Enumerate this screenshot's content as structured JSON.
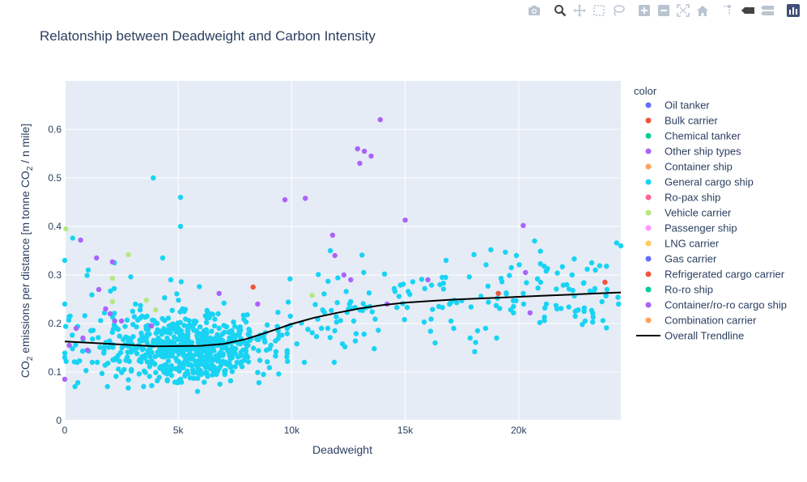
{
  "chart_data": {
    "type": "scatter",
    "title": "Relatonship between Deadweight and Carbon Intensity",
    "xlabel": "Deadweight",
    "ylabel": {
      "pre": "CO",
      "sub1": "2",
      "mid": " emissions per distance [m tonne CO",
      "sub2": "2",
      "post": " / n mile]"
    },
    "xlim": [
      0,
      24500
    ],
    "ylim": [
      0,
      0.7
    ],
    "xticks": [
      0,
      5000,
      10000,
      15000,
      20000
    ],
    "xtick_labels": [
      "0",
      "5k",
      "10k",
      "15k",
      "20k"
    ],
    "yticks": [
      0,
      0.1,
      0.2,
      0.3,
      0.4,
      0.5,
      0.6
    ],
    "ytick_labels": [
      "0",
      "0.1",
      "0.2",
      "0.3",
      "0.4",
      "0.5",
      "0.6"
    ],
    "grid": true,
    "legend_title": "color",
    "legend_position": "right",
    "series": [
      {
        "name": "Oil tanker",
        "color": "#636efa",
        "points": []
      },
      {
        "name": "Bulk carrier",
        "color": "#EF553B",
        "points": [
          [
            8300,
            0.275
          ],
          [
            19100,
            0.262
          ],
          [
            23800,
            0.285
          ]
        ]
      },
      {
        "name": "Chemical tanker",
        "color": "#00cc96",
        "points": []
      },
      {
        "name": "Other ship types",
        "color": "#ab63fa",
        "points": [
          [
            0,
            0.085
          ],
          [
            200,
            0.155
          ],
          [
            500,
            0.19
          ],
          [
            700,
            0.372
          ],
          [
            800,
            0.17
          ],
          [
            1000,
            0.145
          ],
          [
            1400,
            0.335
          ],
          [
            1500,
            0.27
          ],
          [
            1800,
            0.23
          ],
          [
            2000,
            0.22
          ],
          [
            2100,
            0.327
          ],
          [
            2200,
            0.205
          ],
          [
            2500,
            0.205
          ],
          [
            3800,
            0.195
          ],
          [
            6800,
            0.262
          ],
          [
            8500,
            0.24
          ],
          [
            9700,
            0.455
          ],
          [
            10600,
            0.458
          ],
          [
            11800,
            0.382
          ],
          [
            11900,
            0.34
          ],
          [
            12300,
            0.3
          ],
          [
            12600,
            0.29
          ],
          [
            12900,
            0.56
          ],
          [
            13000,
            0.53
          ],
          [
            13200,
            0.555
          ],
          [
            13500,
            0.545
          ],
          [
            13900,
            0.62
          ],
          [
            14200,
            0.24
          ],
          [
            15000,
            0.413
          ],
          [
            16000,
            0.29
          ],
          [
            20200,
            0.402
          ],
          [
            20300,
            0.305
          ],
          [
            20500,
            0.222
          ]
        ]
      },
      {
        "name": "Container ship",
        "color": "#FFA15A",
        "points": []
      },
      {
        "name": "General cargo ship",
        "color": "#19d3f3",
        "points": []
      },
      {
        "name": "Ro-pax ship",
        "color": "#FF6692",
        "points": []
      },
      {
        "name": "Vehicle carrier",
        "color": "#B6E880",
        "points": [
          [
            50,
            0.395
          ],
          [
            2100,
            0.245
          ],
          [
            2100,
            0.293
          ],
          [
            2800,
            0.342
          ],
          [
            3600,
            0.248
          ],
          [
            4000,
            0.228
          ],
          [
            10900,
            0.258
          ]
        ]
      },
      {
        "name": "Passenger ship",
        "color": "#FF97FF",
        "points": []
      },
      {
        "name": "LNG carrier",
        "color": "#FECB52",
        "points": []
      },
      {
        "name": "Gas carrier",
        "color": "#636efa",
        "points": []
      },
      {
        "name": "Refrigerated cargo carrier",
        "color": "#EF553B",
        "points": []
      },
      {
        "name": "Ro-ro ship",
        "color": "#00cc96",
        "points": []
      },
      {
        "name": "Container/ro-ro cargo ship",
        "color": "#ab63fa",
        "points": []
      },
      {
        "name": "Combination carrier",
        "color": "#FFA15A",
        "points": []
      }
    ],
    "trendline": {
      "name": "Overall Trendline",
      "color": "#000000",
      "x": [
        0,
        2000,
        4000,
        6000,
        7000,
        8000,
        9000,
        10000,
        11000,
        12000,
        13000,
        14000,
        15000,
        16000,
        17000,
        18000,
        19000,
        20000,
        21000,
        22000,
        23000,
        24500
      ],
      "y": [
        0.163,
        0.158,
        0.153,
        0.154,
        0.158,
        0.168,
        0.183,
        0.199,
        0.212,
        0.222,
        0.231,
        0.238,
        0.243,
        0.246,
        0.249,
        0.251,
        0.253,
        0.255,
        0.257,
        0.259,
        0.261,
        0.264
      ]
    }
  },
  "modebar": {
    "icons": [
      "camera-icon",
      "zoom-icon",
      "pan-icon",
      "box-select-icon",
      "lasso-select-icon",
      "zoom-in-icon",
      "zoom-out-icon",
      "autoscale-icon",
      "reset-axes-icon",
      "spike-lines-icon",
      "hover-closest-icon",
      "hover-compare-icon",
      "plotly-logo-icon"
    ]
  }
}
